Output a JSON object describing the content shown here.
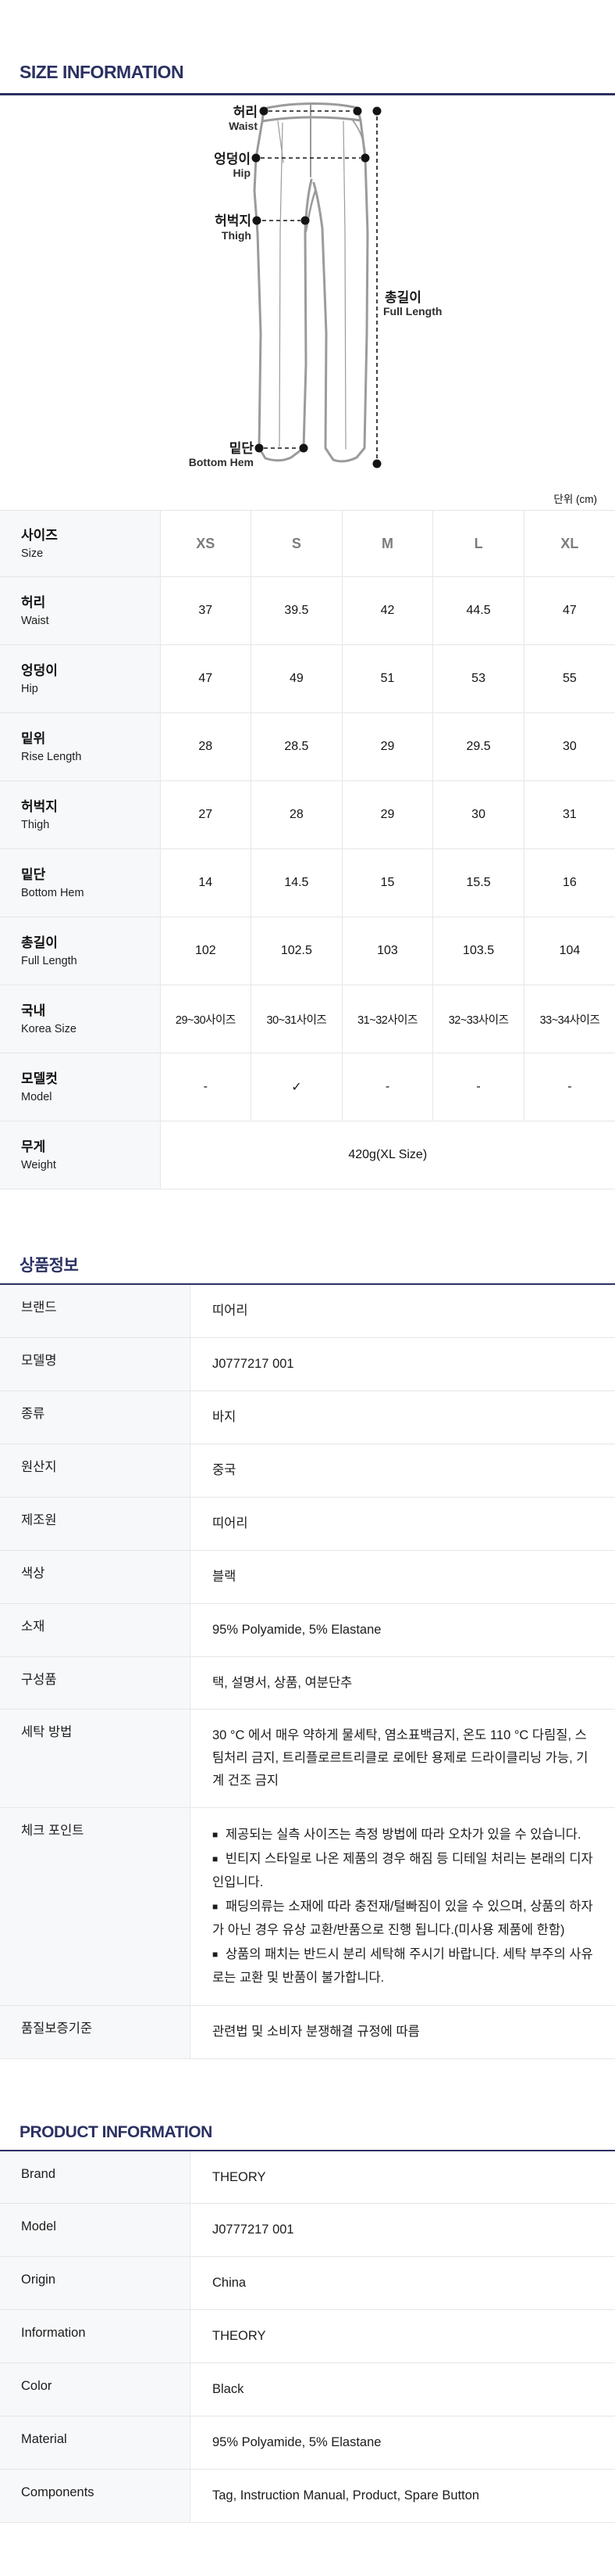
{
  "page": {
    "size_section_title": "SIZE INFORMATION",
    "unit_label": "단위 (cm)",
    "kr_section_title": "상품정보",
    "en_section_title": "PRODUCT INFORMATION",
    "accent_color": "#2b3162"
  },
  "diagram": {
    "waist_kr": "허리",
    "waist_en": "Waist",
    "hip_kr": "엉덩이",
    "hip_en": "Hip",
    "thigh_kr": "허벅지",
    "thigh_en": "Thigh",
    "hem_kr": "밑단",
    "hem_en": "Bottom Hem",
    "length_kr": "총길이",
    "length_en": "Full Length"
  },
  "size_table": {
    "label_kr": "사이즈",
    "label_en": "Size",
    "columns": [
      "XS",
      "S",
      "M",
      "L",
      "XL"
    ],
    "rows": [
      {
        "kr": "허리",
        "en": "Waist",
        "values": [
          "37",
          "39.5",
          "42",
          "44.5",
          "47"
        ]
      },
      {
        "kr": "엉덩이",
        "en": "Hip",
        "values": [
          "47",
          "49",
          "51",
          "53",
          "55"
        ]
      },
      {
        "kr": "밑위",
        "en": "Rise Length",
        "values": [
          "28",
          "28.5",
          "29",
          "29.5",
          "30"
        ]
      },
      {
        "kr": "허벅지",
        "en": "Thigh",
        "values": [
          "27",
          "28",
          "29",
          "30",
          "31"
        ]
      },
      {
        "kr": "밑단",
        "en": "Bottom Hem",
        "values": [
          "14",
          "14.5",
          "15",
          "15.5",
          "16"
        ]
      },
      {
        "kr": "총길이",
        "en": "Full Length",
        "values": [
          "102",
          "102.5",
          "103",
          "103.5",
          "104"
        ]
      },
      {
        "kr": "국내",
        "en": "Korea Size",
        "small": true,
        "values": [
          "29~30사이즈",
          "30~31사이즈",
          "31~32사이즈",
          "32~33사이즈",
          "33~34사이즈"
        ]
      },
      {
        "kr": "모델컷",
        "en": "Model",
        "values": [
          "-",
          "✓",
          "-",
          "-",
          "-"
        ]
      }
    ],
    "weight_row": {
      "kr": "무게",
      "en": "Weight",
      "value": "420g(XL Size)"
    }
  },
  "bullet_char": "■",
  "product_info_kr": {
    "rows": [
      {
        "label": "브랜드",
        "value": "띠어리"
      },
      {
        "label": "모델명",
        "value": "J0777217 001"
      },
      {
        "label": "종류",
        "value": "바지"
      },
      {
        "label": "원산지",
        "value": "중국"
      },
      {
        "label": "제조원",
        "value": "띠어리"
      },
      {
        "label": "색상",
        "value": "블랙"
      },
      {
        "label": "소재",
        "value": "95% Polyamide, 5% Elastane"
      },
      {
        "label": "구성품",
        "value": "택, 설명서, 상품, 여분단추"
      },
      {
        "label": "세탁 방법",
        "value": "30 °C 에서 매우 약하게 물세탁, 염소표백금지, 온도 110 °C 다림질, 스팀처리 금지, 트리플로르트리클로 로에탄 용제로 드라이클리닝 가능, 기계 건조 금지"
      },
      {
        "label": "체크 포인트",
        "bullets": [
          "제공되는 실측 사이즈는 측정 방법에 따라 오차가 있을 수 있습니다.",
          "빈티지 스타일로 나온 제품의 경우 해짐 등 디테일 처리는 본래의 디자인입니다.",
          "패딩의류는 소재에 따라 충전재/털빠짐이 있을 수 있으며, 상품의 하자가 아닌 경우 유상 교환/반품으로 진행 됩니다.(미사용 제품에 한함)",
          "상품의 패치는 반드시 분리 세탁해 주시기 바랍니다. 세탁 부주의 사유로는 교환 및 반품이 불가합니다."
        ]
      },
      {
        "label": "품질보증기준",
        "value": "관련법 및 소비자 분쟁해결 규정에 따름"
      }
    ]
  },
  "product_info_en": {
    "rows": [
      {
        "label": "Brand",
        "value": "THEORY"
      },
      {
        "label": "Model",
        "value": "J0777217 001"
      },
      {
        "label": "Origin",
        "value": "China"
      },
      {
        "label": "Information",
        "value": "THEORY"
      },
      {
        "label": "Color",
        "value": "Black"
      },
      {
        "label": "Material",
        "value": "95% Polyamide, 5% Elastane"
      },
      {
        "label": "Components",
        "value": "Tag, Instruction Manual, Product, Spare Button"
      }
    ]
  }
}
